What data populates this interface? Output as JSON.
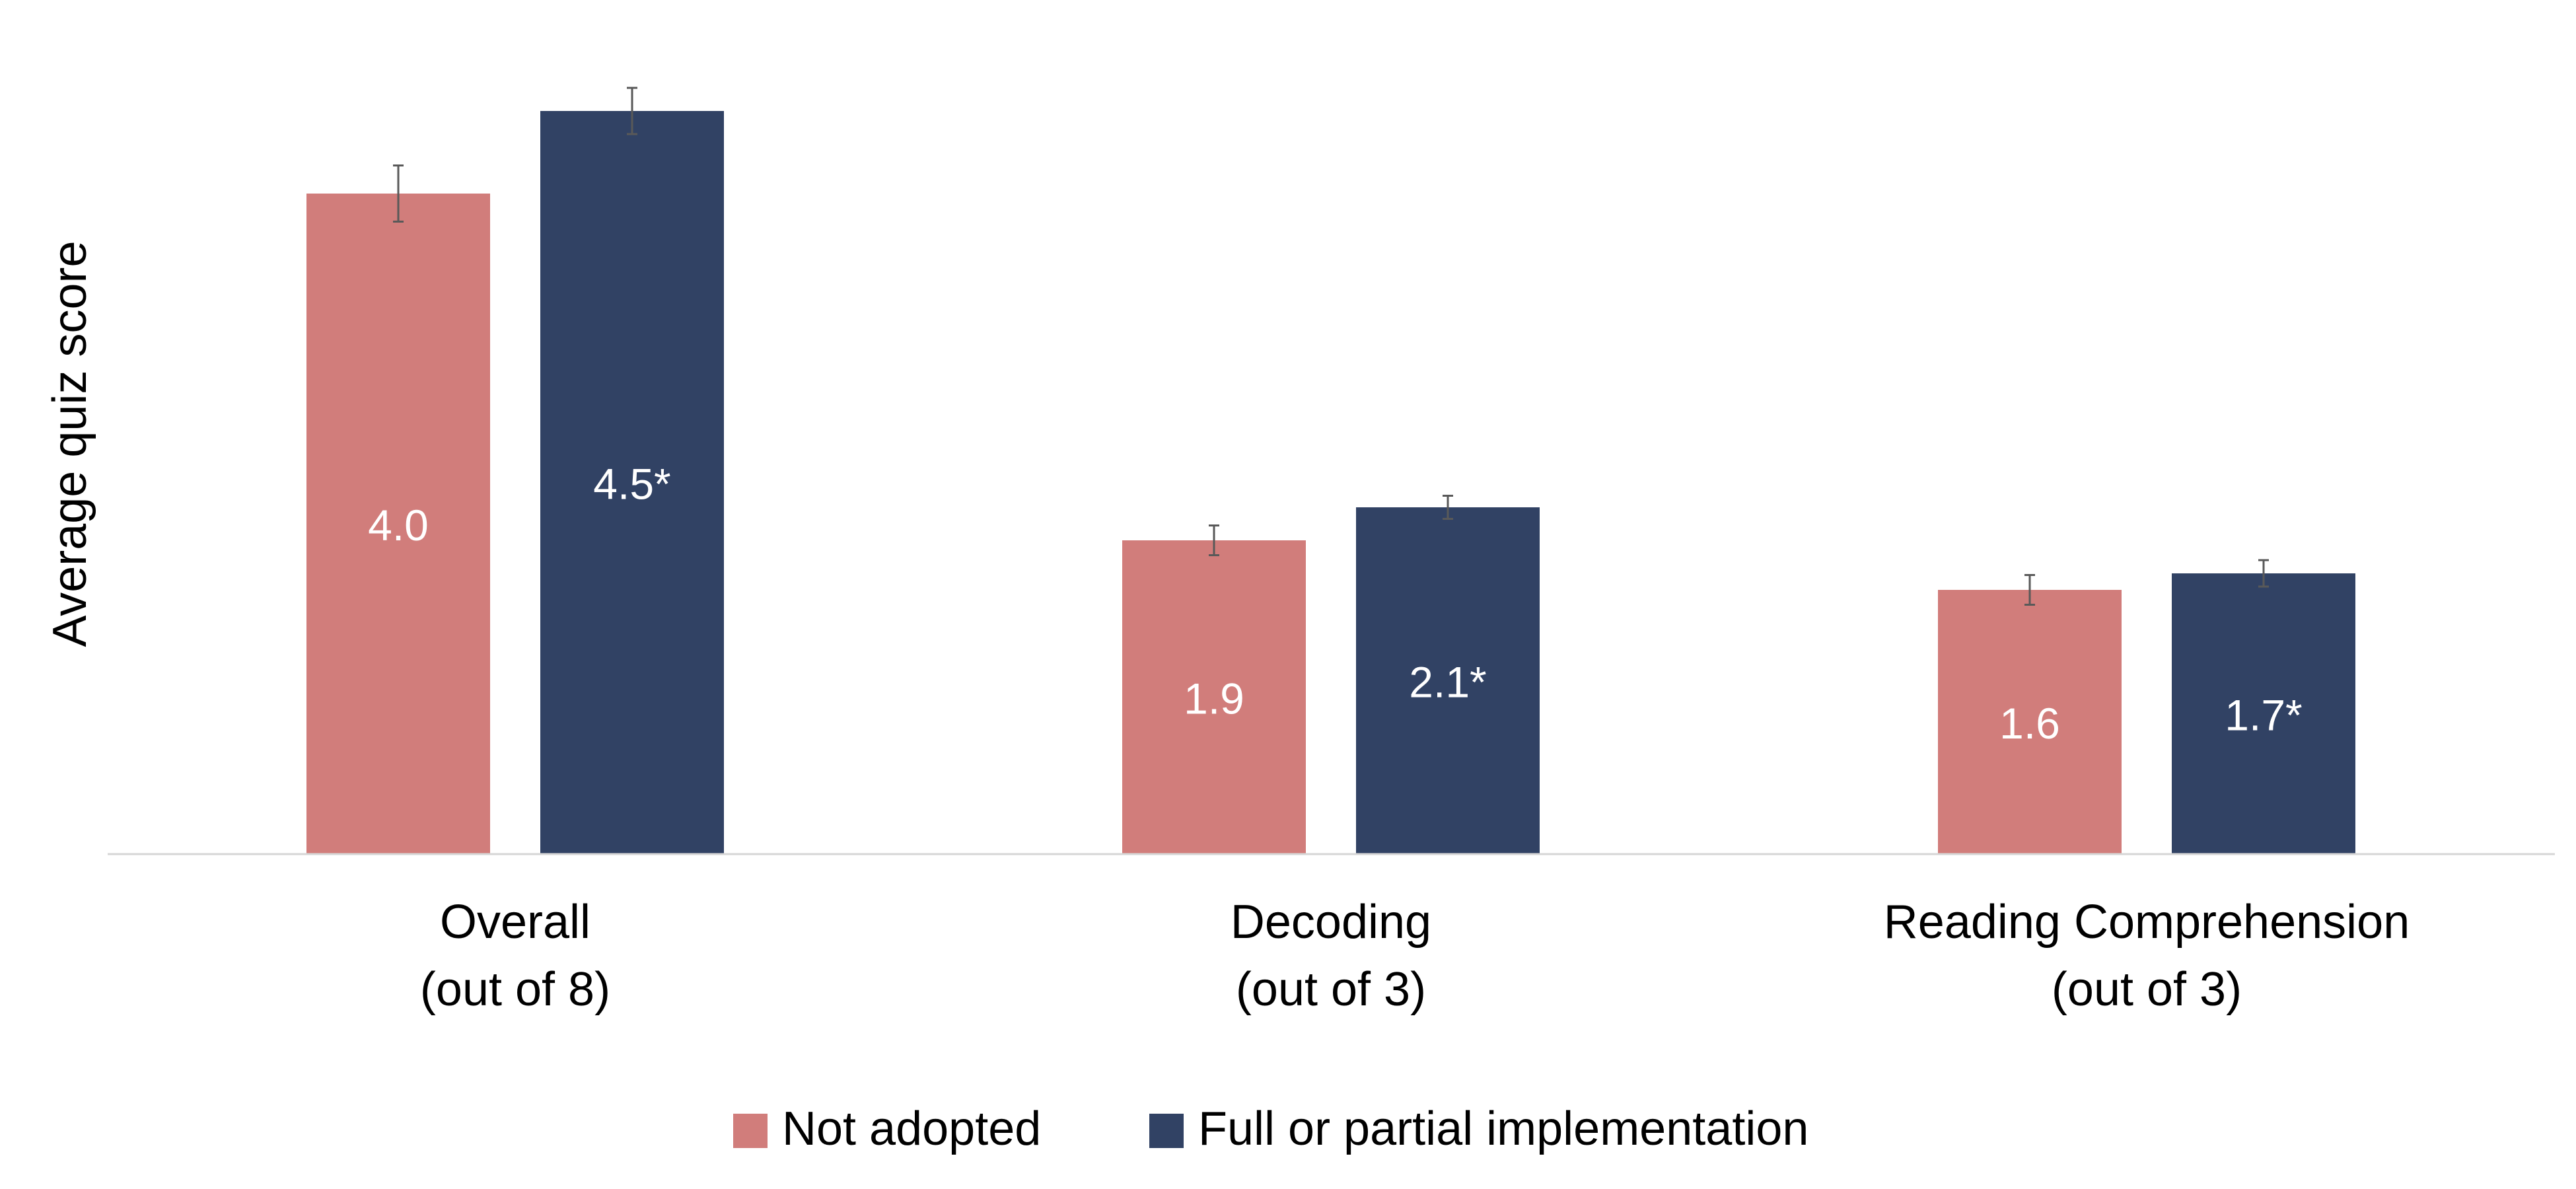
{
  "chart_data": {
    "type": "bar",
    "title": "",
    "xlabel": "",
    "ylabel": "Average quiz score",
    "ylim": [
      0,
      5
    ],
    "grid": false,
    "legend_position": "bottom",
    "categories": [
      {
        "line1": "Overall",
        "line2": "(out of 8)"
      },
      {
        "line1": "Decoding",
        "line2": "(out of 3)"
      },
      {
        "line1": "Reading Comprehension",
        "line2": "(out of 3)"
      }
    ],
    "series": [
      {
        "name": "Not adopted",
        "color": "#d17d7b",
        "values": [
          4.0,
          1.9,
          1.6
        ],
        "labels": [
          "4.0",
          "1.9",
          "1.6"
        ],
        "error": [
          0.17,
          0.09,
          0.09
        ]
      },
      {
        "name": "Full or partial implementation",
        "color": "#314264",
        "values": [
          4.5,
          2.1,
          1.7
        ],
        "labels": [
          "4.5*",
          "2.1*",
          "1.7*"
        ],
        "error": [
          0.14,
          0.07,
          0.08
        ]
      }
    ],
    "colors": {
      "axis": "#d6d6d6",
      "error_bar": "#595959",
      "bar_label": "#ffffff",
      "text": "#000000"
    }
  }
}
